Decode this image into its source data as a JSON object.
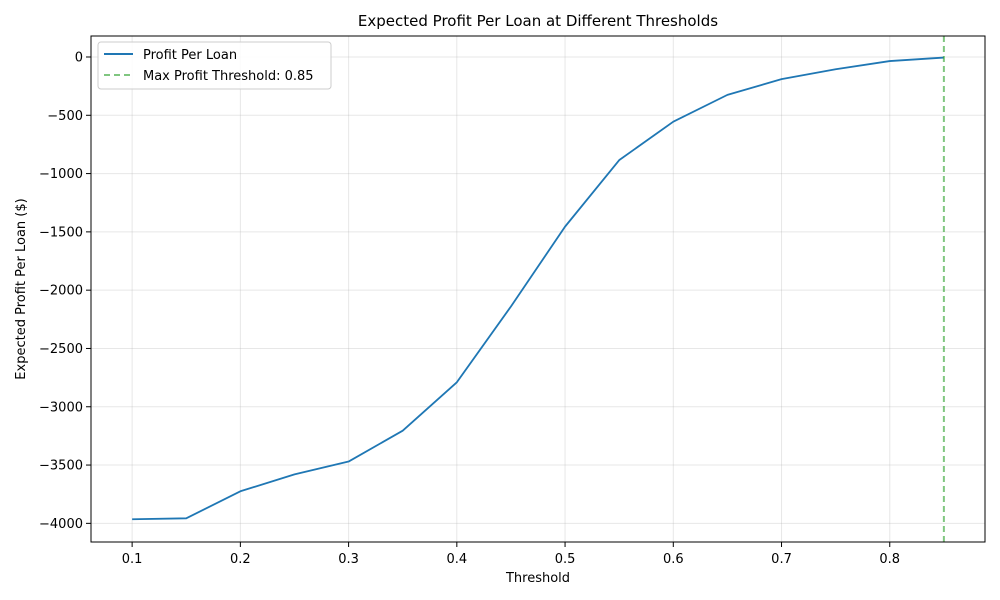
{
  "chart_data": {
    "type": "line",
    "title": "Expected Profit Per Loan at Different Thresholds",
    "xlabel": "Threshold",
    "ylabel": "Expected Profit Per Loan ($)",
    "xlim": [
      0.062,
      0.888
    ],
    "ylim": [
      -4160,
      180
    ],
    "x_ticks": [
      0.1,
      0.2,
      0.3,
      0.4,
      0.5,
      0.6,
      0.7,
      0.8
    ],
    "y_ticks": [
      -4000,
      -3500,
      -3000,
      -2500,
      -2000,
      -1500,
      -1000,
      -500,
      0
    ],
    "grid": true,
    "legend_position": "top-left",
    "series": [
      {
        "name": "Profit Per Loan",
        "color": "#1f77b4",
        "x": [
          0.1,
          0.15,
          0.2,
          0.25,
          0.3,
          0.35,
          0.4,
          0.45,
          0.5,
          0.55,
          0.6,
          0.65,
          0.7,
          0.75,
          0.8,
          0.85
        ],
        "y": [
          -3965,
          -3957,
          -3725,
          -3580,
          -3470,
          -3205,
          -2790,
          -2140,
          -1455,
          -885,
          -555,
          -325,
          -190,
          -105,
          -35,
          -5
        ]
      }
    ],
    "reference_line": {
      "name": "Max Profit Threshold: 0.85",
      "x": 0.85,
      "color": "#2ca02c",
      "style": "dashed"
    }
  }
}
